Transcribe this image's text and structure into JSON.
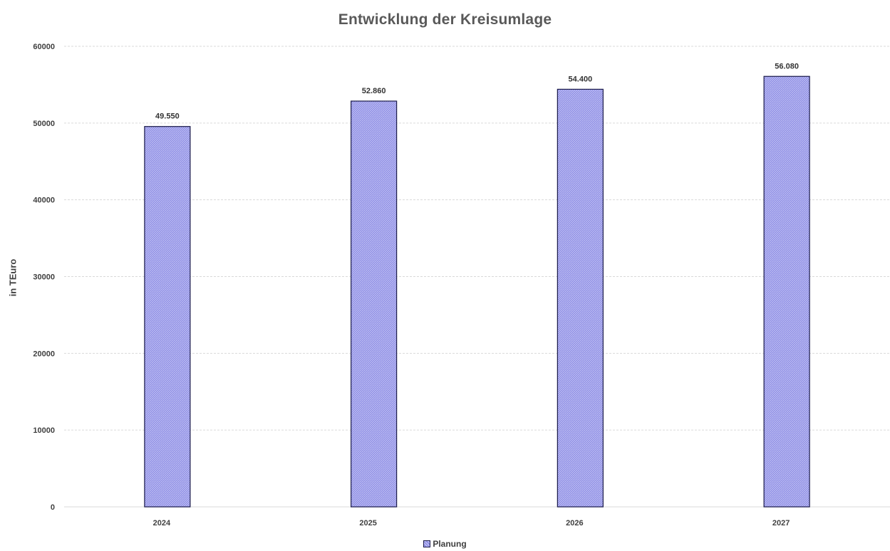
{
  "chart_data": {
    "type": "bar",
    "title": "Entwicklung der Kreisumlage",
    "xlabel": "",
    "ylabel": "in TEuro",
    "categories": [
      "2024",
      "2025",
      "2026",
      "2027"
    ],
    "series": [
      {
        "name": "Planung",
        "values": [
          49550,
          52860,
          54400,
          56080
        ],
        "data_labels": [
          "49.550",
          "52.860",
          "54.400",
          "56.080"
        ],
        "color": "#8f8fe6",
        "edge_color": "#1a1a4a"
      }
    ],
    "ylim": [
      0,
      60000
    ],
    "yticks": [
      0,
      10000,
      20000,
      30000,
      40000,
      50000,
      60000
    ],
    "ytick_labels": [
      "0",
      "10000",
      "20000",
      "30000",
      "40000",
      "50000",
      "60000"
    ],
    "grid": true,
    "grid_style": "dashed",
    "legend_placement": "bottom"
  },
  "colors": {
    "bar_fill": "#8f8fe6",
    "bar_edge": "#1a1a4a",
    "title": "#595959",
    "text": "#404040",
    "grid": "#d9d9d9"
  }
}
